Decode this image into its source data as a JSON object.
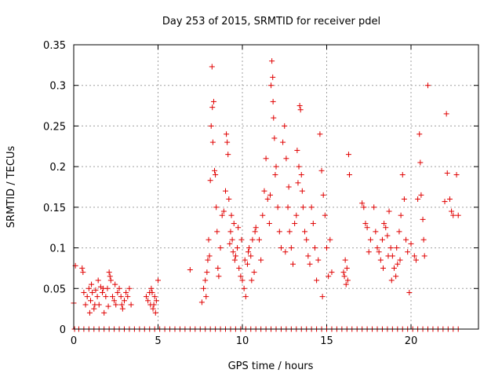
{
  "chart_data": {
    "type": "scatter",
    "title": "Day 253 of 2015, SRMTID for receiver pdel",
    "xlabel": "GPS time / hours",
    "ylabel": "SRMTID / TECUs",
    "xlim": [
      0,
      24
    ],
    "ylim": [
      0,
      0.35
    ],
    "xticks": [
      "0",
      "5",
      "10",
      "15",
      "20"
    ],
    "xtick_values": [
      0,
      5,
      10,
      15,
      20
    ],
    "yticks": [
      "0",
      "0.05",
      "0.1",
      "0.15",
      "0.2",
      "0.25",
      "0.3",
      "0.35"
    ],
    "ytick_values": [
      0,
      0.05,
      0.1,
      0.15,
      0.2,
      0.25,
      0.3,
      0.35
    ],
    "grid": true,
    "marker": "+",
    "color": "#e00000",
    "series": [
      {
        "name": "SRMTID",
        "points": [
          [
            0.0,
            0.032
          ],
          [
            0.1,
            0.078
          ],
          [
            0.5,
            0.075
          ],
          [
            0.55,
            0.07
          ],
          [
            0.6,
            0.045
          ],
          [
            0.7,
            0.03
          ],
          [
            0.8,
            0.04
          ],
          [
            0.9,
            0.05
          ],
          [
            1.0,
            0.035
          ],
          [
            1.1,
            0.045
          ],
          [
            1.2,
            0.025
          ],
          [
            1.3,
            0.048
          ],
          [
            1.4,
            0.04
          ],
          [
            1.5,
            0.03
          ],
          [
            1.6,
            0.052
          ],
          [
            1.7,
            0.045
          ],
          [
            1.8,
            0.02
          ],
          [
            1.9,
            0.04
          ],
          [
            2.0,
            0.05
          ],
          [
            2.1,
            0.07
          ],
          [
            2.15,
            0.065
          ],
          [
            2.2,
            0.06
          ],
          [
            2.3,
            0.04
          ],
          [
            2.4,
            0.035
          ],
          [
            2.5,
            0.03
          ],
          [
            2.6,
            0.045
          ],
          [
            2.7,
            0.05
          ],
          [
            2.8,
            0.04
          ],
          [
            2.9,
            0.025
          ],
          [
            3.0,
            0.035
          ],
          [
            3.1,
            0.045
          ],
          [
            3.2,
            0.04
          ],
          [
            3.3,
            0.05
          ],
          [
            3.4,
            0.03
          ],
          [
            1.05,
            0.055
          ],
          [
            1.45,
            0.06
          ],
          [
            1.75,
            0.05
          ],
          [
            2.45,
            0.055
          ],
          [
            2.85,
            0.03
          ],
          [
            1.25,
            0.03
          ],
          [
            0.95,
            0.02
          ],
          [
            2.05,
            0.028
          ],
          [
            4.3,
            0.04
          ],
          [
            4.4,
            0.035
          ],
          [
            4.5,
            0.045
          ],
          [
            4.6,
            0.05
          ],
          [
            4.7,
            0.025
          ],
          [
            4.75,
            0.03
          ],
          [
            4.8,
            0.04
          ],
          [
            4.85,
            0.02
          ],
          [
            4.9,
            0.035
          ],
          [
            5.0,
            0.06
          ],
          [
            4.55,
            0.03
          ],
          [
            4.65,
            0.045
          ],
          [
            6.9,
            0.073
          ],
          [
            7.6,
            0.033
          ],
          [
            7.7,
            0.05
          ],
          [
            7.8,
            0.06
          ],
          [
            7.85,
            0.04
          ],
          [
            7.9,
            0.07
          ],
          [
            7.95,
            0.085
          ],
          [
            8.0,
            0.11
          ],
          [
            8.05,
            0.09
          ],
          [
            8.1,
            0.183
          ],
          [
            8.15,
            0.25
          ],
          [
            8.2,
            0.323
          ],
          [
            8.22,
            0.273
          ],
          [
            8.25,
            0.23
          ],
          [
            8.3,
            0.28
          ],
          [
            8.35,
            0.195
          ],
          [
            8.4,
            0.19
          ],
          [
            8.45,
            0.15
          ],
          [
            8.5,
            0.12
          ],
          [
            8.55,
            0.075
          ],
          [
            8.6,
            0.065
          ],
          [
            8.7,
            0.1
          ],
          [
            8.8,
            0.14
          ],
          [
            8.9,
            0.145
          ],
          [
            9.0,
            0.17
          ],
          [
            9.05,
            0.24
          ],
          [
            9.1,
            0.23
          ],
          [
            9.15,
            0.215
          ],
          [
            9.2,
            0.16
          ],
          [
            9.3,
            0.12
          ],
          [
            9.4,
            0.11
          ],
          [
            9.5,
            0.13
          ],
          [
            9.6,
            0.09
          ],
          [
            9.7,
            0.1
          ],
          [
            9.8,
            0.075
          ],
          [
            9.9,
            0.065
          ],
          [
            10.0,
            0.06
          ],
          [
            10.1,
            0.05
          ],
          [
            10.2,
            0.04
          ],
          [
            10.3,
            0.08
          ],
          [
            10.4,
            0.1
          ],
          [
            10.5,
            0.09
          ],
          [
            10.6,
            0.11
          ],
          [
            10.7,
            0.07
          ],
          [
            10.8,
            0.125
          ],
          [
            9.35,
            0.14
          ],
          [
            9.55,
            0.085
          ],
          [
            9.75,
            0.125
          ],
          [
            9.95,
            0.11
          ],
          [
            10.15,
            0.085
          ],
          [
            10.35,
            0.095
          ],
          [
            10.55,
            0.06
          ],
          [
            10.75,
            0.12
          ],
          [
            9.25,
            0.105
          ],
          [
            9.45,
            0.095
          ],
          [
            11.0,
            0.11
          ],
          [
            11.1,
            0.085
          ],
          [
            11.2,
            0.14
          ],
          [
            11.3,
            0.17
          ],
          [
            11.4,
            0.21
          ],
          [
            11.5,
            0.16
          ],
          [
            11.6,
            0.13
          ],
          [
            11.65,
            0.165
          ],
          [
            11.7,
            0.3
          ],
          [
            11.75,
            0.33
          ],
          [
            11.8,
            0.31
          ],
          [
            11.82,
            0.28
          ],
          [
            11.85,
            0.26
          ],
          [
            11.9,
            0.235
          ],
          [
            11.95,
            0.19
          ],
          [
            12.0,
            0.2
          ],
          [
            12.1,
            0.15
          ],
          [
            12.2,
            0.12
          ],
          [
            12.3,
            0.1
          ],
          [
            12.4,
            0.23
          ],
          [
            12.5,
            0.25
          ],
          [
            12.6,
            0.21
          ],
          [
            12.7,
            0.15
          ],
          [
            12.8,
            0.12
          ],
          [
            12.9,
            0.1
          ],
          [
            13.0,
            0.08
          ],
          [
            13.1,
            0.13
          ],
          [
            13.2,
            0.14
          ],
          [
            13.25,
            0.22
          ],
          [
            13.3,
            0.18
          ],
          [
            13.35,
            0.2
          ],
          [
            13.4,
            0.275
          ],
          [
            13.45,
            0.27
          ],
          [
            13.5,
            0.19
          ],
          [
            13.55,
            0.17
          ],
          [
            13.6,
            0.15
          ],
          [
            13.7,
            0.12
          ],
          [
            13.8,
            0.11
          ],
          [
            13.9,
            0.09
          ],
          [
            14.0,
            0.08
          ],
          [
            14.1,
            0.15
          ],
          [
            14.2,
            0.13
          ],
          [
            14.3,
            0.1
          ],
          [
            14.4,
            0.06
          ],
          [
            14.5,
            0.085
          ],
          [
            14.6,
            0.24
          ],
          [
            14.7,
            0.195
          ],
          [
            14.8,
            0.165
          ],
          [
            14.9,
            0.14
          ],
          [
            15.0,
            0.1
          ],
          [
            15.1,
            0.065
          ],
          [
            15.2,
            0.11
          ],
          [
            15.3,
            0.07
          ],
          [
            14.75,
            0.04
          ],
          [
            12.55,
            0.095
          ],
          [
            12.75,
            0.175
          ],
          [
            16.0,
            0.07
          ],
          [
            16.05,
            0.065
          ],
          [
            16.1,
            0.085
          ],
          [
            16.15,
            0.055
          ],
          [
            16.2,
            0.075
          ],
          [
            16.25,
            0.06
          ],
          [
            16.3,
            0.215
          ],
          [
            16.35,
            0.19
          ],
          [
            17.1,
            0.155
          ],
          [
            17.2,
            0.15
          ],
          [
            17.3,
            0.13
          ],
          [
            17.4,
            0.125
          ],
          [
            17.5,
            0.095
          ],
          [
            17.6,
            0.11
          ],
          [
            17.8,
            0.15
          ],
          [
            17.9,
            0.12
          ],
          [
            18.0,
            0.1
          ],
          [
            18.1,
            0.095
          ],
          [
            18.2,
            0.085
          ],
          [
            18.3,
            0.11
          ],
          [
            18.4,
            0.13
          ],
          [
            18.5,
            0.125
          ],
          [
            18.6,
            0.115
          ],
          [
            18.7,
            0.145
          ],
          [
            18.8,
            0.1
          ],
          [
            18.9,
            0.09
          ],
          [
            19.0,
            0.075
          ],
          [
            19.1,
            0.065
          ],
          [
            19.2,
            0.08
          ],
          [
            19.3,
            0.12
          ],
          [
            19.4,
            0.14
          ],
          [
            19.5,
            0.19
          ],
          [
            19.6,
            0.16
          ],
          [
            19.7,
            0.11
          ],
          [
            19.8,
            0.095
          ],
          [
            19.9,
            0.045
          ],
          [
            18.85,
            0.06
          ],
          [
            19.15,
            0.1
          ],
          [
            18.35,
            0.075
          ],
          [
            18.65,
            0.09
          ],
          [
            19.35,
            0.085
          ],
          [
            20.0,
            0.105
          ],
          [
            20.2,
            0.09
          ],
          [
            20.3,
            0.085
          ],
          [
            20.4,
            0.16
          ],
          [
            20.5,
            0.24
          ],
          [
            20.55,
            0.205
          ],
          [
            20.6,
            0.165
          ],
          [
            20.7,
            0.135
          ],
          [
            20.75,
            0.11
          ],
          [
            20.8,
            0.09
          ],
          [
            21.0,
            0.3
          ],
          [
            22.0,
            0.157
          ],
          [
            22.1,
            0.265
          ],
          [
            22.15,
            0.192
          ],
          [
            22.3,
            0.16
          ],
          [
            22.4,
            0.145
          ],
          [
            22.5,
            0.14
          ],
          [
            22.7,
            0.19
          ],
          [
            22.8,
            0.14
          ],
          [
            0.05,
            0
          ],
          [
            0.3,
            0
          ],
          [
            0.6,
            0
          ],
          [
            0.9,
            0
          ],
          [
            1.2,
            0
          ],
          [
            1.5,
            0
          ],
          [
            1.8,
            0
          ],
          [
            2.1,
            0
          ],
          [
            2.4,
            0
          ],
          [
            2.7,
            0
          ],
          [
            3.0,
            0
          ],
          [
            3.3,
            0
          ],
          [
            3.6,
            0
          ],
          [
            3.9,
            0
          ],
          [
            4.2,
            0
          ],
          [
            4.5,
            0
          ],
          [
            4.8,
            0
          ],
          [
            5.1,
            0
          ],
          [
            5.4,
            0
          ],
          [
            5.7,
            0
          ],
          [
            6.0,
            0
          ],
          [
            6.3,
            0
          ],
          [
            6.6,
            0
          ],
          [
            6.9,
            0
          ],
          [
            7.2,
            0
          ],
          [
            7.5,
            0
          ],
          [
            7.8,
            0
          ],
          [
            8.1,
            0
          ],
          [
            8.4,
            0
          ],
          [
            8.7,
            0
          ],
          [
            9.0,
            0
          ],
          [
            9.3,
            0
          ],
          [
            9.6,
            0
          ],
          [
            9.9,
            0
          ],
          [
            10.2,
            0
          ],
          [
            10.5,
            0
          ],
          [
            10.8,
            0
          ],
          [
            11.1,
            0
          ],
          [
            11.4,
            0
          ],
          [
            11.7,
            0
          ],
          [
            12.0,
            0
          ],
          [
            12.3,
            0
          ],
          [
            12.6,
            0
          ],
          [
            12.9,
            0
          ],
          [
            13.2,
            0
          ],
          [
            13.5,
            0
          ],
          [
            13.8,
            0
          ],
          [
            14.1,
            0
          ],
          [
            14.4,
            0
          ],
          [
            14.7,
            0
          ],
          [
            15.0,
            0
          ],
          [
            15.3,
            0
          ],
          [
            15.6,
            0
          ],
          [
            15.9,
            0
          ],
          [
            16.2,
            0
          ],
          [
            16.5,
            0
          ],
          [
            16.8,
            0
          ],
          [
            17.1,
            0
          ],
          [
            17.4,
            0
          ],
          [
            17.7,
            0
          ],
          [
            18.0,
            0
          ],
          [
            18.3,
            0
          ],
          [
            18.6,
            0
          ],
          [
            18.9,
            0
          ],
          [
            19.2,
            0
          ],
          [
            19.5,
            0
          ],
          [
            19.8,
            0
          ],
          [
            20.1,
            0
          ],
          [
            20.4,
            0
          ],
          [
            20.7,
            0
          ],
          [
            21.0,
            0
          ],
          [
            21.3,
            0
          ],
          [
            21.6,
            0
          ],
          [
            21.9,
            0
          ],
          [
            22.2,
            0
          ],
          [
            22.5,
            0
          ],
          [
            22.8,
            0
          ]
        ]
      }
    ]
  }
}
